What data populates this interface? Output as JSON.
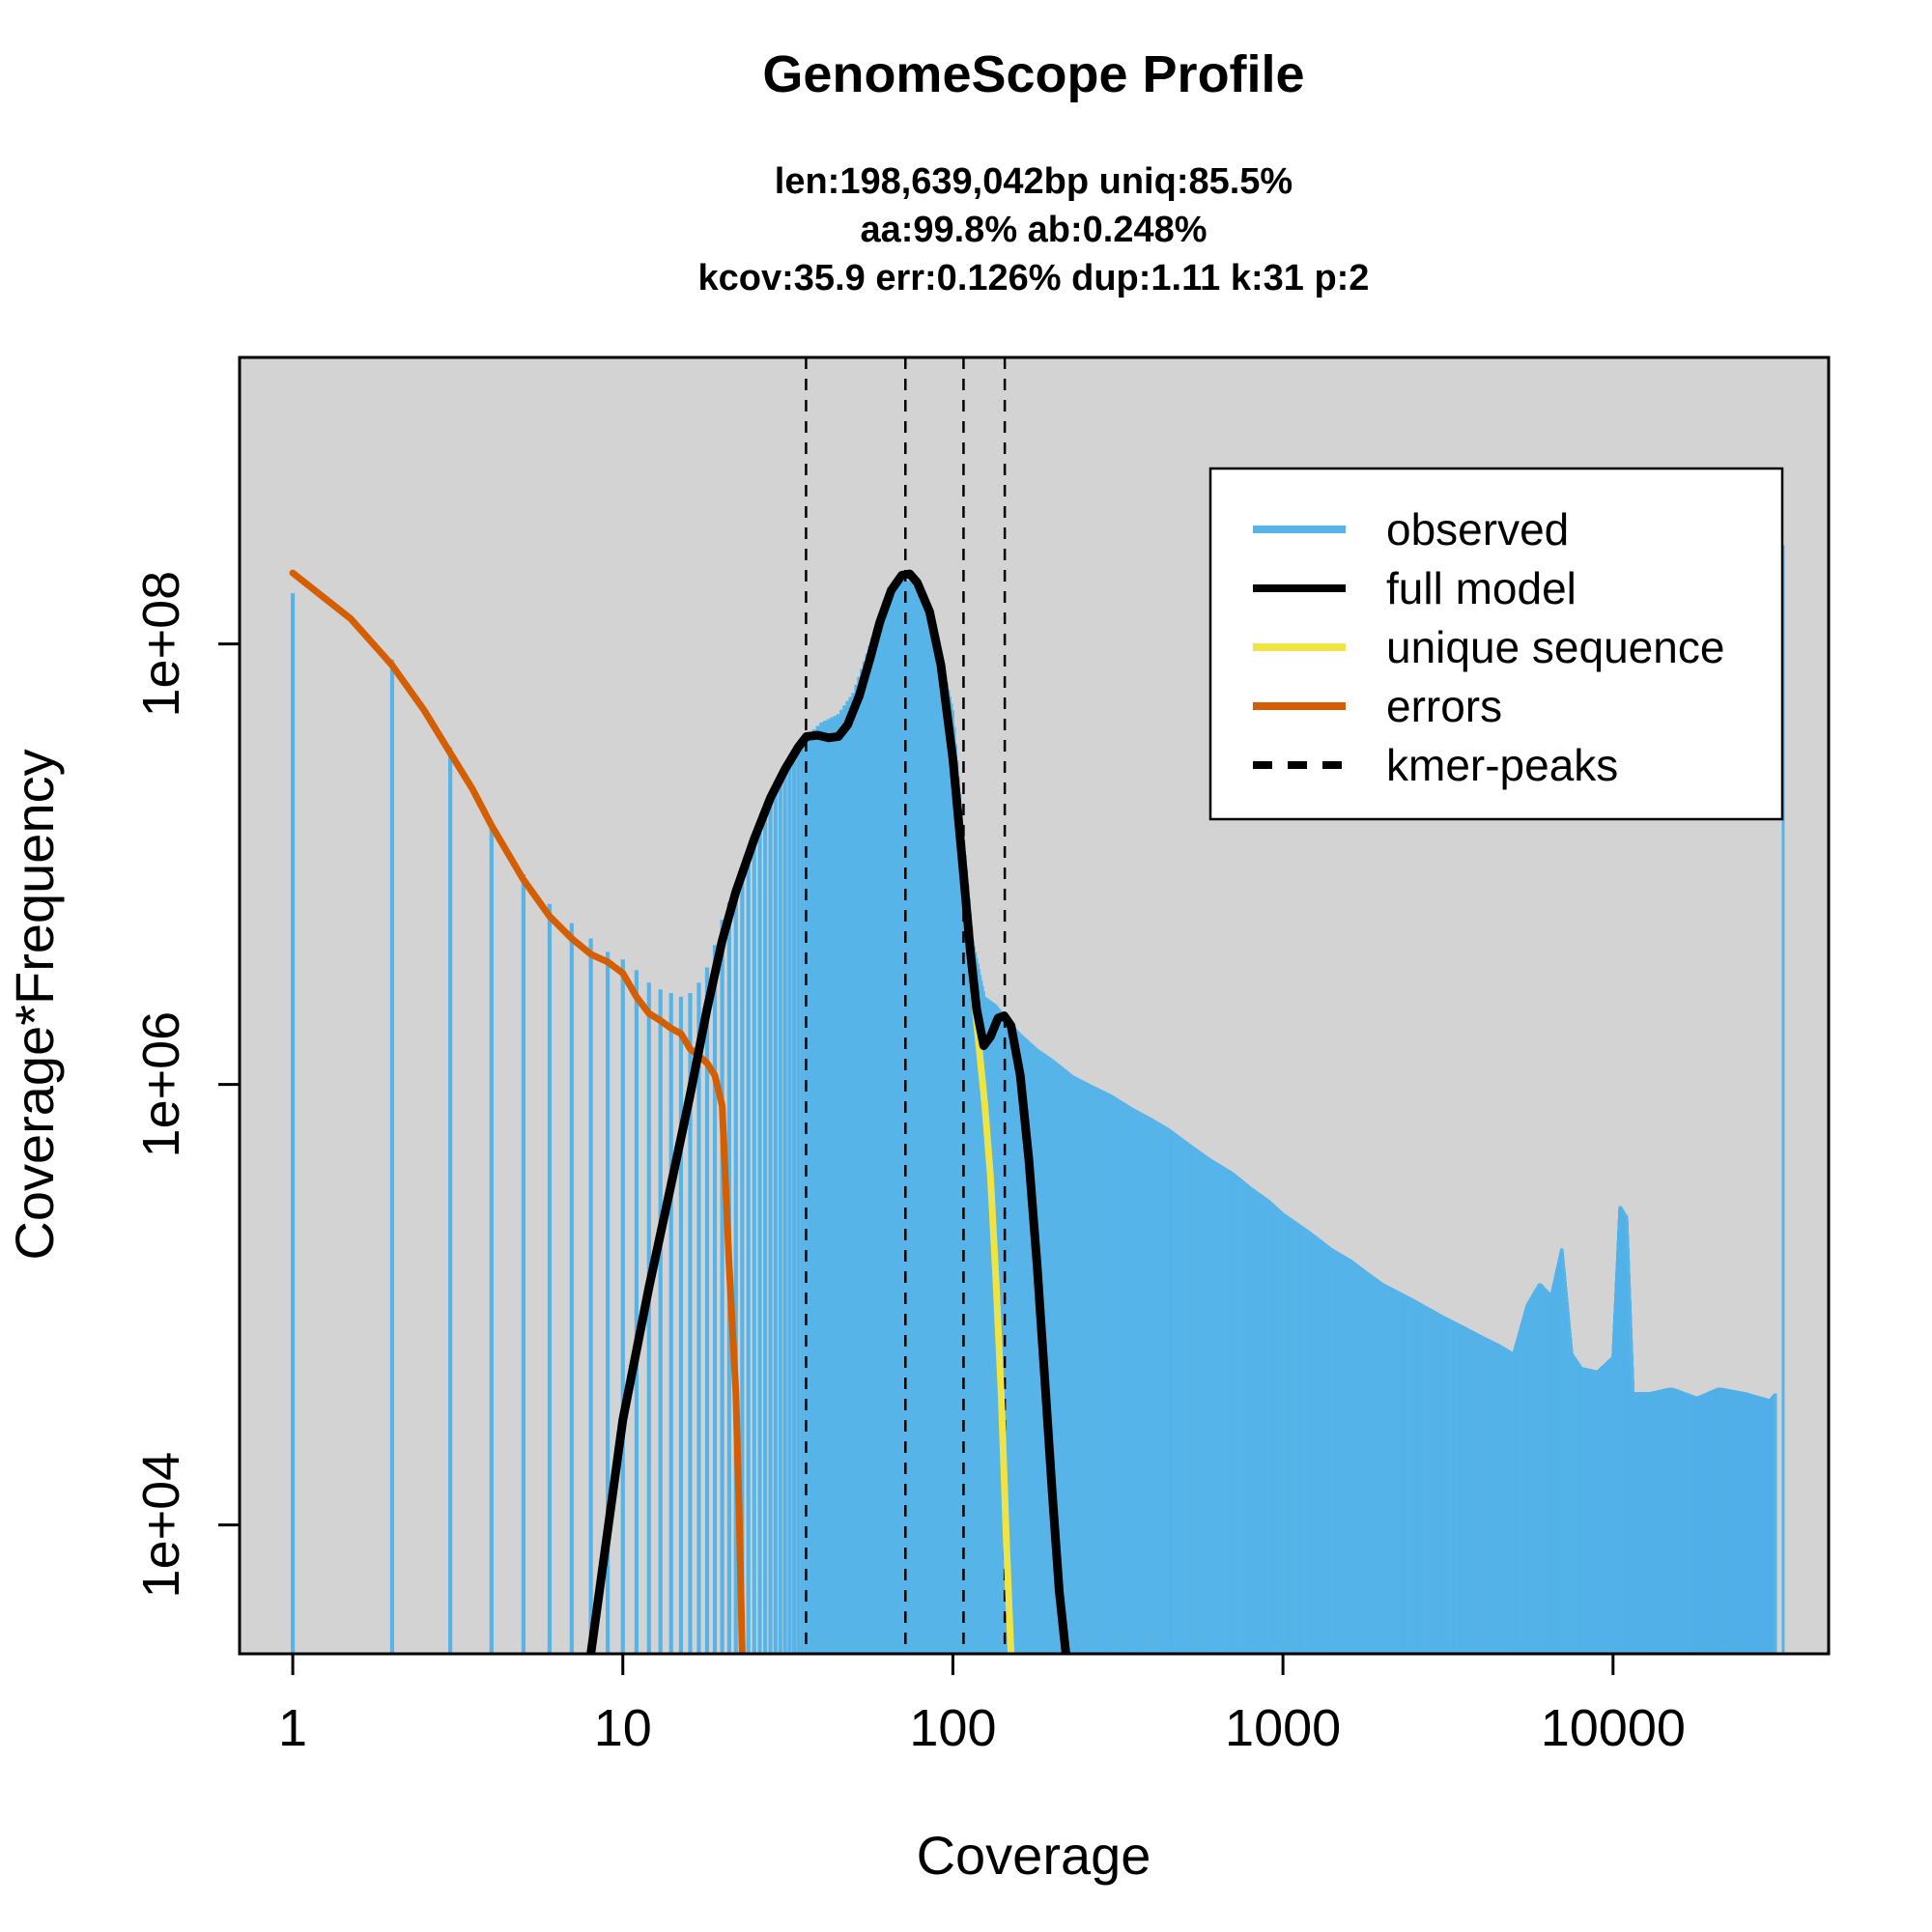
{
  "chart_data": {
    "type": "line",
    "title": "GenomeScope Profile",
    "subtitle_lines": [
      "len:198,639,042bp uniq:85.5%",
      "aa:99.8% ab:0.248%",
      "kcov:35.9 err:0.126%  dup:1.11  k:31 p:2"
    ],
    "xlabel": "Coverage",
    "ylabel": "Coverage*Frequency",
    "x_scale": "log",
    "y_scale": "log",
    "xlim": [
      0.69,
      45000
    ],
    "ylim": [
      2600,
      2000000000
    ],
    "x_ticks": [
      {
        "value": 1,
        "label": "1"
      },
      {
        "value": 10,
        "label": "10"
      },
      {
        "value": 100,
        "label": "100"
      },
      {
        "value": 1000,
        "label": "1000"
      },
      {
        "value": 10000,
        "label": "10000"
      }
    ],
    "y_ticks": [
      {
        "value": 10000,
        "label": "1e+04"
      },
      {
        "value": 1000000,
        "label": "1e+06"
      },
      {
        "value": 100000000,
        "label": "1e+08"
      }
    ],
    "plot_background": "#d3d3d3",
    "grid": false,
    "legend_position": "top-right",
    "legend": [
      {
        "label": "observed",
        "color": "#56b4e9",
        "style": "solid"
      },
      {
        "label": "full model",
        "color": "#000000",
        "style": "solid"
      },
      {
        "label": "unique sequence",
        "color": "#f0e442",
        "style": "solid"
      },
      {
        "label": "errors",
        "color": "#d55e00",
        "style": "solid"
      },
      {
        "label": "kmer-peaks",
        "color": "#000000",
        "style": "dashed"
      }
    ],
    "kmer_peaks": [
      35.9,
      71.8,
      107.7,
      143.6
    ],
    "series": [
      {
        "name": "observed",
        "kind": "histogram-bars",
        "color": "#56b4e9",
        "points": [
          [
            1,
            170000000
          ],
          [
            2,
            85000000
          ],
          [
            3,
            34000000
          ],
          [
            4,
            15500000
          ],
          [
            5,
            9000000
          ],
          [
            6,
            6600000
          ],
          [
            7,
            5400000
          ],
          [
            8,
            4600000
          ],
          [
            9,
            4000000
          ],
          [
            10,
            3700000
          ],
          [
            11,
            3300000
          ],
          [
            12,
            2900000
          ],
          [
            13,
            2700000
          ],
          [
            14,
            2600000
          ],
          [
            15,
            2500000
          ],
          [
            16,
            2600000
          ],
          [
            17,
            2900000
          ],
          [
            18,
            3400000
          ],
          [
            19,
            4300000
          ],
          [
            20,
            5600000
          ],
          [
            22,
            8000000
          ],
          [
            25,
            13000000
          ],
          [
            28,
            20000000
          ],
          [
            32,
            28000000
          ],
          [
            36,
            38000000
          ],
          [
            40,
            44000000
          ],
          [
            45,
            48000000
          ],
          [
            50,
            60000000
          ],
          [
            55,
            90000000
          ],
          [
            60,
            135000000
          ],
          [
            65,
            185000000
          ],
          [
            70,
            200000000
          ],
          [
            75,
            190000000
          ],
          [
            80,
            160000000
          ],
          [
            90,
            105000000
          ],
          [
            100,
            50000000
          ],
          [
            107,
            15000000
          ],
          [
            115,
            4500000
          ],
          [
            125,
            2500000
          ],
          [
            135,
            2300000
          ],
          [
            145,
            2000000
          ],
          [
            160,
            1700000
          ],
          [
            180,
            1450000
          ],
          [
            200,
            1300000
          ],
          [
            230,
            1100000
          ],
          [
            260,
            1000000
          ],
          [
            300,
            900000
          ],
          [
            350,
            780000
          ],
          [
            400,
            700000
          ],
          [
            450,
            630000
          ],
          [
            500,
            560000
          ],
          [
            600,
            460000
          ],
          [
            700,
            400000
          ],
          [
            800,
            340000
          ],
          [
            900,
            300000
          ],
          [
            1000,
            260000
          ],
          [
            1200,
            215000
          ],
          [
            1400,
            180000
          ],
          [
            1600,
            160000
          ],
          [
            1800,
            140000
          ],
          [
            2000,
            125000
          ],
          [
            2500,
            105000
          ],
          [
            3000,
            90000
          ],
          [
            3500,
            80000
          ],
          [
            4000,
            72000
          ],
          [
            4500,
            66000
          ],
          [
            5000,
            60000
          ],
          [
            5500,
            100000
          ],
          [
            6000,
            125000
          ],
          [
            6500,
            110000
          ],
          [
            7000,
            180000
          ],
          [
            7500,
            60000
          ],
          [
            8000,
            52000
          ],
          [
            9000,
            50000
          ],
          [
            10000,
            58000
          ],
          [
            10500,
            280000
          ],
          [
            11000,
            250000
          ],
          [
            11500,
            40000
          ],
          [
            13000,
            40000
          ],
          [
            15000,
            42000
          ],
          [
            18000,
            38000
          ],
          [
            21000,
            42000
          ],
          [
            25000,
            40000
          ],
          [
            30000,
            37000
          ],
          [
            32000,
            42000
          ],
          [
            32768,
            280000000
          ]
        ]
      },
      {
        "name": "full model",
        "kind": "line",
        "color": "#000000",
        "points": [
          [
            8,
            2600
          ],
          [
            10,
            30000
          ],
          [
            12,
            120000
          ],
          [
            14,
            350000
          ],
          [
            16,
            900000
          ],
          [
            18,
            2200000
          ],
          [
            20,
            4500000
          ],
          [
            22,
            7500000
          ],
          [
            25,
            13000000
          ],
          [
            28,
            20000000
          ],
          [
            31,
            27000000
          ],
          [
            34,
            34000000
          ],
          [
            36,
            38000000
          ],
          [
            39,
            38500000
          ],
          [
            42,
            37500000
          ],
          [
            45,
            38000000
          ],
          [
            48,
            43000000
          ],
          [
            52,
            58000000
          ],
          [
            56,
            85000000
          ],
          [
            60,
            125000000
          ],
          [
            65,
            175000000
          ],
          [
            70,
            205000000
          ],
          [
            74,
            208000000
          ],
          [
            78,
            190000000
          ],
          [
            85,
            140000000
          ],
          [
            92,
            80000000
          ],
          [
            100,
            30000000
          ],
          [
            107,
            10000000
          ],
          [
            113,
            4000000
          ],
          [
            118,
            2200000
          ],
          [
            124,
            1500000
          ],
          [
            130,
            1650000
          ],
          [
            137,
            2000000
          ],
          [
            143,
            2050000
          ],
          [
            150,
            1850000
          ],
          [
            160,
            1100000
          ],
          [
            170,
            450000
          ],
          [
            180,
            150000
          ],
          [
            190,
            45000
          ],
          [
            200,
            14000
          ],
          [
            210,
            5000
          ],
          [
            220,
            2600
          ]
        ]
      },
      {
        "name": "unique sequence",
        "kind": "line",
        "color": "#f0e442",
        "points": [
          [
            108,
            9000000
          ],
          [
            113,
            3800000
          ],
          [
            118,
            1900000
          ],
          [
            125,
            800000
          ],
          [
            130,
            380000
          ],
          [
            135,
            130000
          ],
          [
            140,
            40000
          ],
          [
            145,
            9000
          ],
          [
            150,
            2600
          ]
        ]
      },
      {
        "name": "errors",
        "kind": "line",
        "color": "#d55e00",
        "points": [
          [
            1,
            210000000
          ],
          [
            1.5,
            130000000
          ],
          [
            2,
            80000000
          ],
          [
            2.5,
            50000000
          ],
          [
            3,
            32000000
          ],
          [
            3.5,
            22000000
          ],
          [
            4,
            15000000
          ],
          [
            5,
            8500000
          ],
          [
            6,
            5800000
          ],
          [
            7,
            4600000
          ],
          [
            8,
            3900000
          ],
          [
            9,
            3600000
          ],
          [
            10,
            3200000
          ],
          [
            11,
            2500000
          ],
          [
            12,
            2100000
          ],
          [
            13,
            1950000
          ],
          [
            14,
            1800000
          ],
          [
            15,
            1700000
          ],
          [
            16,
            1450000
          ],
          [
            17,
            1350000
          ],
          [
            18,
            1250000
          ],
          [
            19,
            1100000
          ],
          [
            20,
            800000
          ],
          [
            21,
            150000
          ],
          [
            22,
            40000
          ],
          [
            22.5,
            12000
          ],
          [
            23,
            2600
          ]
        ]
      }
    ]
  }
}
